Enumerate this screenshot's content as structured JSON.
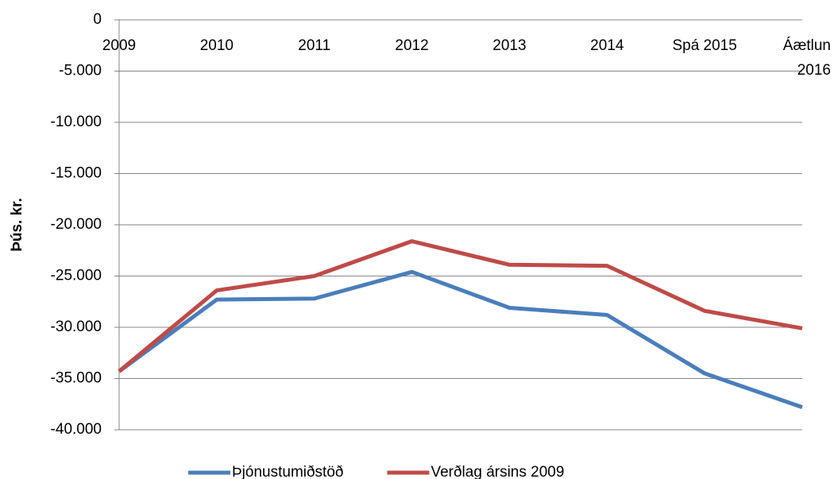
{
  "chart_data": {
    "type": "line",
    "y_label": "Þús. kr.",
    "categories": [
      "2009",
      "2010",
      "2011",
      "2012",
      "2013",
      "2014",
      "Spá 2015",
      "Áætlun 2016"
    ],
    "series": [
      {
        "name": "Þjónustumiðstöð",
        "color": "#4a7ebb",
        "values": [
          -34300,
          -27300,
          -27200,
          -24600,
          -28100,
          -28800,
          -34500,
          -37800
        ]
      },
      {
        "name": "Verðlag ársins 2009",
        "color": "#be4b48",
        "values": [
          -34300,
          -26400,
          -25000,
          -21600,
          -23900,
          -24000,
          -28400,
          -30100
        ]
      }
    ],
    "ylim": [
      -40000,
      0
    ],
    "yticks": [
      0,
      {
        "value": -5000,
        "label": "-5.000"
      },
      {
        "value": -10000,
        "label": "-10.000"
      },
      {
        "value": -15000,
        "label": "-15.000"
      },
      {
        "value": -20000,
        "label": "-20.000"
      },
      {
        "value": -25000,
        "label": "-25.000"
      },
      {
        "value": -30000,
        "label": "-30.000"
      },
      {
        "value": -35000,
        "label": "-35.000"
      },
      {
        "value": -40000,
        "label": "-40.000"
      }
    ],
    "grid": true,
    "legend": "bottom"
  }
}
